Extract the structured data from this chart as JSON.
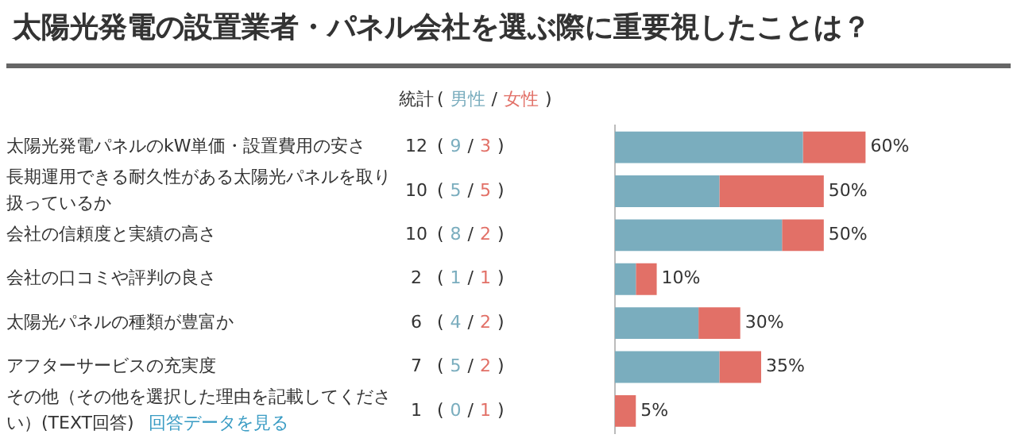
{
  "chart_data": {
    "type": "bar",
    "orientation": "horizontal",
    "stacked": true,
    "title": "太陽光発電の設置業者・パネル会社を選ぶ際に重要視したことは？",
    "categories": [
      "太陽光発電パネルのkW単価・設置費用の安さ",
      "長期運用できる耐久性がある太陽光パネルを取り扱っているか",
      "会社の信頼度と実績の高さ",
      "会社の口コミや評判の良さ",
      "太陽光パネルの種類が豊富か",
      "アフターサービスの充実度",
      "その他（その他を選択した理由を記載してください）(TEXT回答)"
    ],
    "series": [
      {
        "name": "男性",
        "color": "#7aadbe",
        "values": [
          9,
          5,
          8,
          1,
          4,
          5,
          0
        ],
        "value_labels": [
          "9",
          "5",
          "8",
          "1",
          "4",
          "5",
          "0"
        ]
      },
      {
        "name": "女性",
        "color": "#e27067",
        "values": [
          3,
          5,
          2,
          1,
          2,
          2,
          1
        ],
        "value_labels": [
          "3",
          "5",
          "2",
          "1",
          "2",
          "2",
          "1"
        ]
      }
    ],
    "legend": "top left",
    "grid": false,
    "annotations": [
      "統計",
      "(",
      "/",
      ")",
      "回答データを見る",
      "60%",
      "50%",
      "50%",
      "10%",
      "30%",
      "35%",
      "5%",
      "12",
      "10",
      "10",
      "2",
      "6",
      "7",
      "1"
    ]
  }
}
